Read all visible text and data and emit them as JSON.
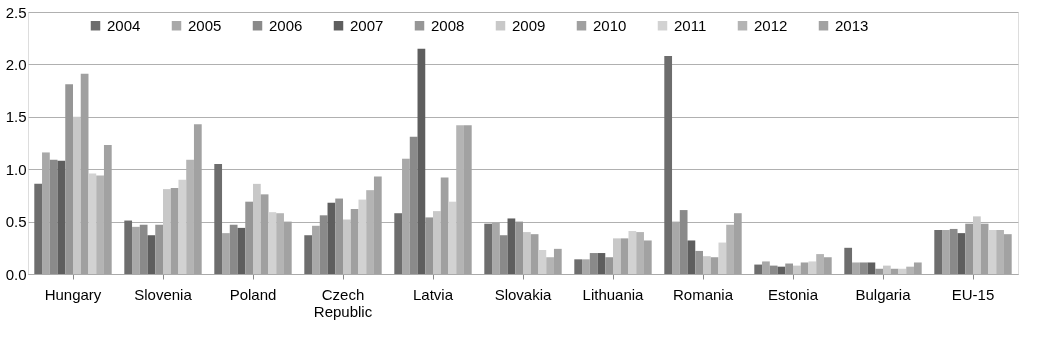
{
  "chart_data": {
    "type": "bar",
    "categories": [
      "Hungary",
      "Slovenia",
      "Poland",
      "Czech Republic",
      "Latvia",
      "Slovakia",
      "Lithuania",
      "Romania",
      "Estonia",
      "Bulgaria",
      "EU-15"
    ],
    "series": [
      {
        "name": "2004",
        "color": "#6d6d6d",
        "values": [
          0.86,
          0.51,
          1.05,
          0.37,
          0.58,
          0.48,
          0.14,
          2.08,
          0.09,
          0.25,
          0.42
        ]
      },
      {
        "name": "2005",
        "color": "#a8a8a8",
        "values": [
          1.16,
          0.45,
          0.39,
          0.46,
          1.1,
          0.49,
          0.14,
          0.5,
          0.12,
          0.11,
          0.42
        ]
      },
      {
        "name": "2006",
        "color": "#8a8a8a",
        "values": [
          1.09,
          0.47,
          0.47,
          0.56,
          1.31,
          0.37,
          0.2,
          0.61,
          0.08,
          0.11,
          0.43
        ]
      },
      {
        "name": "2007",
        "color": "#5e5e5e",
        "values": [
          1.08,
          0.37,
          0.44,
          0.68,
          2.15,
          0.53,
          0.2,
          0.32,
          0.07,
          0.11,
          0.39
        ]
      },
      {
        "name": "2008",
        "color": "#969696",
        "values": [
          1.81,
          0.47,
          0.69,
          0.72,
          0.54,
          0.5,
          0.16,
          0.22,
          0.1,
          0.05,
          0.48
        ]
      },
      {
        "name": "2009",
        "color": "#c8c8c8",
        "values": [
          1.5,
          0.81,
          0.86,
          0.52,
          0.6,
          0.4,
          0.34,
          0.17,
          0.08,
          0.08,
          0.55
        ]
      },
      {
        "name": "2010",
        "color": "#a0a0a0",
        "values": [
          1.91,
          0.82,
          0.76,
          0.62,
          0.92,
          0.38,
          0.34,
          0.16,
          0.11,
          0.05,
          0.48
        ]
      },
      {
        "name": "2011",
        "color": "#d2d2d2",
        "values": [
          0.96,
          0.9,
          0.59,
          0.71,
          0.69,
          0.23,
          0.41,
          0.3,
          0.12,
          0.05,
          0.42
        ]
      },
      {
        "name": "2012",
        "color": "#b4b4b4",
        "values": [
          0.94,
          1.09,
          0.58,
          0.8,
          1.42,
          0.16,
          0.4,
          0.47,
          0.19,
          0.07,
          0.42
        ]
      },
      {
        "name": "2013",
        "color": "#a2a2a2",
        "values": [
          1.23,
          1.43,
          0.5,
          0.93,
          1.42,
          0.24,
          0.32,
          0.58,
          0.16,
          0.11,
          0.38
        ]
      }
    ],
    "ylim": [
      0,
      2.5
    ],
    "yticks": [
      {
        "value": 0,
        "label": "0.0"
      },
      {
        "value": 0.5,
        "label": "0.5"
      },
      {
        "value": 1,
        "label": "1.0"
      },
      {
        "value": 1.5,
        "label": "1.5"
      },
      {
        "value": 2,
        "label": "2.0"
      },
      {
        "value": 2.5,
        "label": "2.5"
      }
    ],
    "grid": "y",
    "legend": "top"
  }
}
